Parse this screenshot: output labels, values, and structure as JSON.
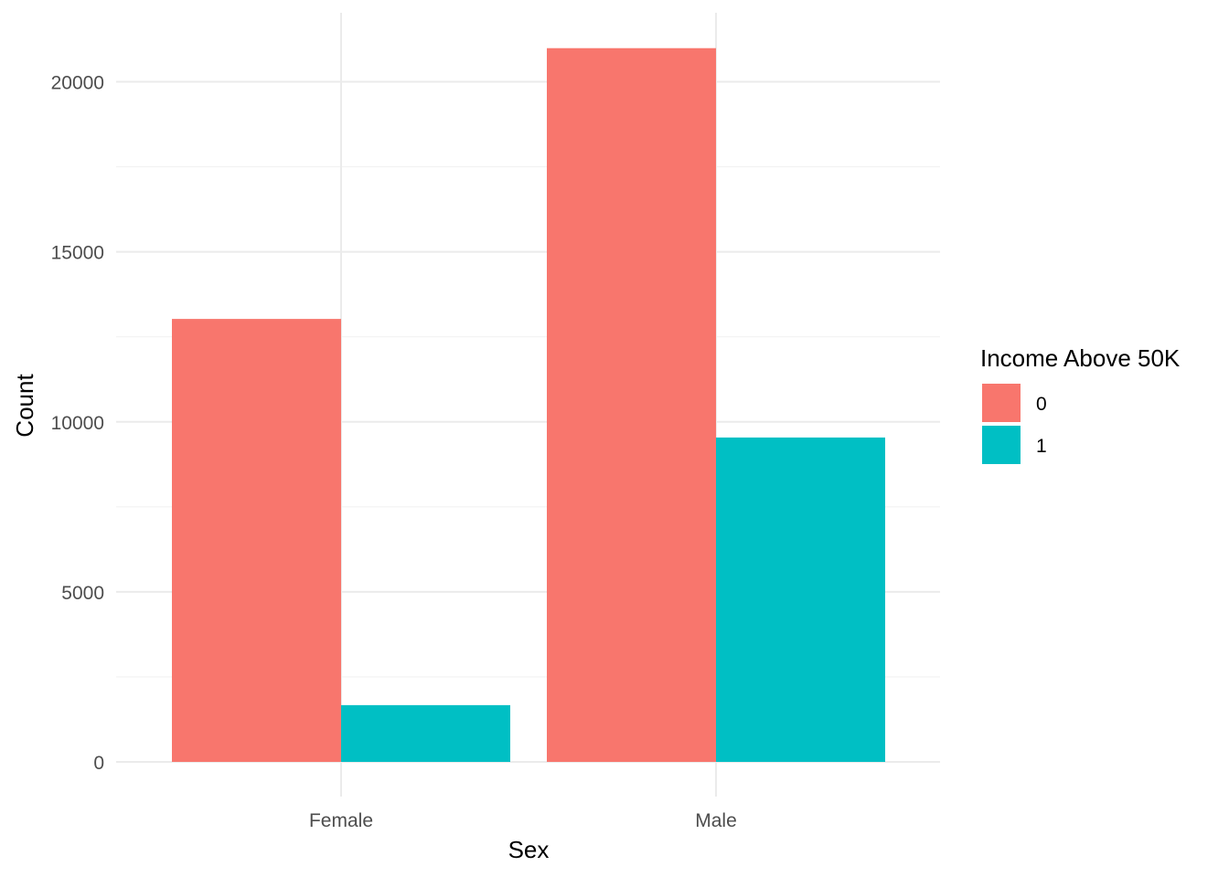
{
  "chart_data": {
    "type": "bar",
    "categories": [
      "Female",
      "Male"
    ],
    "series": [
      {
        "name": "0",
        "values": [
          13026,
          20988
        ],
        "color": "#F8766D"
      },
      {
        "name": "1",
        "values": [
          1669,
          9539
        ],
        "color": "#00BFC4"
      }
    ],
    "title": "",
    "xlabel": "Sex",
    "ylabel": "Count",
    "ylim": [
      0,
      22000
    ],
    "yticks": [
      0,
      5000,
      10000,
      15000,
      20000
    ],
    "ytick_labels": [
      "0",
      "5000",
      "10000",
      "15000",
      "20000"
    ],
    "grid": true,
    "legend": {
      "title": "Income Above 50K",
      "placement": "right"
    },
    "colors": {
      "grid_major": "#EBEBEB",
      "grid_minor": "#F2F2F2",
      "tick_text": "#4D4D4D"
    }
  }
}
